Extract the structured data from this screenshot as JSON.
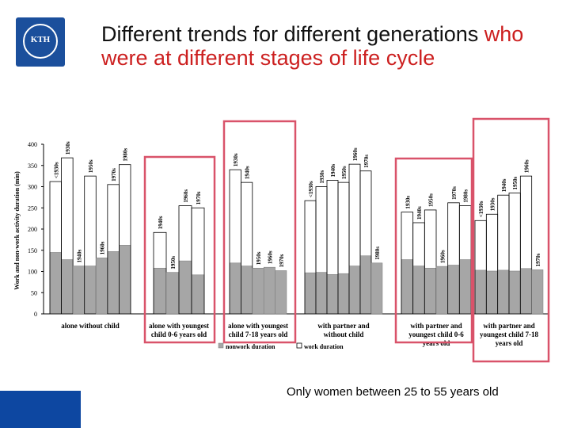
{
  "logo": {
    "name": "KTH",
    "colors": {
      "bg": "#1b4f9c"
    }
  },
  "title": {
    "part1": "Different trends for different generations ",
    "part2": "who were at different stages of life cycle"
  },
  "footnote": "Only women between 25 to 55 years old",
  "colors": {
    "nonwork": "#a6a6a6",
    "highlight": "#d9536a",
    "title_accent": "#cc1f1f",
    "band": "#0d47a1"
  },
  "chart_data": {
    "type": "bar",
    "ylabel": "Work and non-work activity duration (min)",
    "ylim": [
      0,
      400
    ],
    "yticks": [
      0,
      50,
      100,
      150,
      200,
      250,
      300,
      350,
      400
    ],
    "highlighted_groups": [
      1,
      2,
      4,
      5
    ],
    "legend": [
      {
        "label": "nonwork duration",
        "style": "filled"
      },
      {
        "label": "work duration",
        "style": "outline"
      }
    ],
    "groups": [
      {
        "label": "alone without child",
        "cohorts": [
          "<1930s",
          "1930s",
          "1940s",
          "1950s",
          "1960s",
          "1970s",
          "1980s"
        ],
        "nonwork": [
          145,
          128,
          113,
          113,
          132,
          147,
          162
        ],
        "work": [
          312,
          368,
          null,
          325,
          null,
          305,
          352
        ]
      },
      {
        "label": "alone with youngest child 0-6 years old",
        "cohorts": [
          "1940s",
          "1950s",
          "1960s",
          "1970s"
        ],
        "nonwork": [
          108,
          98,
          125,
          92
        ],
        "work": [
          192,
          null,
          255,
          250
        ]
      },
      {
        "label": "alone with youngest child 7-18 years old",
        "cohorts": [
          "1930s",
          "1940s",
          "1950s",
          "1960s",
          "1970s"
        ],
        "nonwork": [
          120,
          113,
          108,
          110,
          102
        ],
        "work": [
          340,
          310,
          null,
          null,
          null
        ]
      },
      {
        "label": "with partner and without child",
        "cohorts": [
          "<1930s",
          "1930s",
          "1940s",
          "1950s",
          "1960s",
          "1970s",
          "1980s"
        ],
        "nonwork": [
          97,
          98,
          93,
          95,
          113,
          137,
          120
        ],
        "work": [
          267,
          300,
          315,
          310,
          353,
          337,
          null
        ]
      },
      {
        "label": "with partner and youngest child 0-6 years old",
        "cohorts": [
          "1930s",
          "1940s",
          "1950s",
          "1960s",
          "1970s",
          "1980s"
        ],
        "nonwork": [
          128,
          113,
          108,
          112,
          115,
          128
        ],
        "work": [
          240,
          215,
          245,
          null,
          262,
          255
        ]
      },
      {
        "label": "with partner and youngest child 7-18 years old",
        "cohorts": [
          "<1930s",
          "1930s",
          "1940s",
          "1950s",
          "1960s",
          "1970s"
        ],
        "nonwork": [
          103,
          101,
          103,
          101,
          107,
          104
        ],
        "work": [
          220,
          235,
          280,
          285,
          325,
          null
        ]
      }
    ]
  }
}
